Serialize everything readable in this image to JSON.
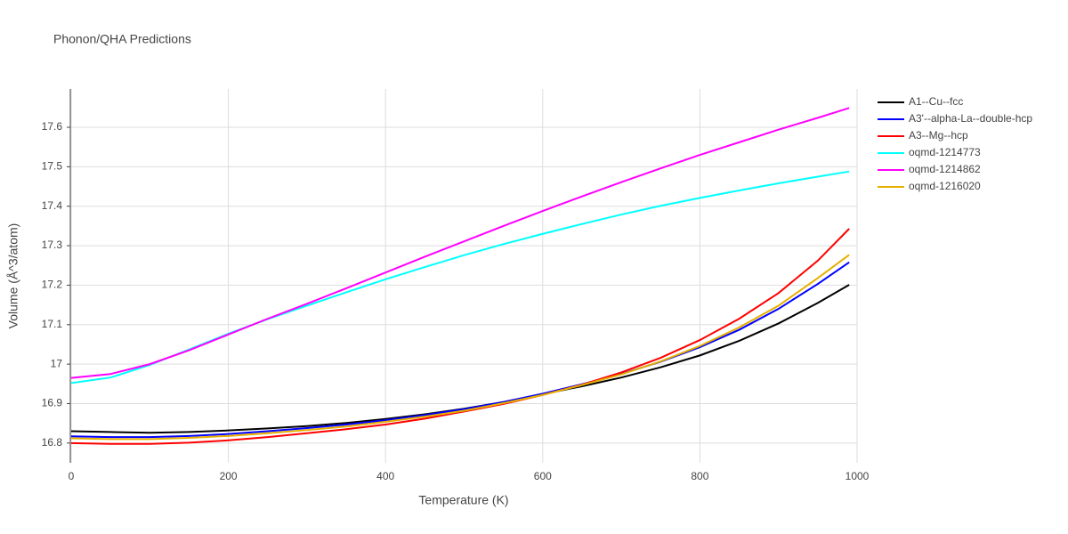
{
  "chart_data": {
    "type": "line",
    "title": "Phonon/QHA Predictions",
    "x_label": "Temperature (K)",
    "y_label": "Volume (Å^3/atom)",
    "x": [
      0,
      50,
      100,
      150,
      200,
      250,
      300,
      350,
      400,
      450,
      500,
      550,
      600,
      650,
      700,
      750,
      800,
      850,
      900,
      950,
      990
    ],
    "series": [
      {
        "name": "A1--Cu--fcc",
        "color": "#000000",
        "values": [
          16.83,
          16.828,
          16.826,
          16.828,
          16.832,
          16.837,
          16.843,
          16.851,
          16.861,
          16.873,
          16.887,
          16.904,
          16.924,
          16.944,
          16.966,
          16.992,
          17.022,
          17.059,
          17.103,
          17.155,
          17.201
        ]
      },
      {
        "name": "A3'--alpha-La--double-hcp",
        "color": "#0000ff",
        "values": [
          16.817,
          16.815,
          16.815,
          16.818,
          16.823,
          16.83,
          16.838,
          16.847,
          16.858,
          16.871,
          16.886,
          16.904,
          16.925,
          16.949,
          16.975,
          17.006,
          17.043,
          17.087,
          17.14,
          17.203,
          17.258
        ]
      },
      {
        "name": "A3--Mg--hcp",
        "color": "#ff0000",
        "values": [
          16.8,
          16.798,
          16.798,
          16.801,
          16.807,
          16.815,
          16.825,
          16.835,
          16.847,
          16.862,
          16.88,
          16.899,
          16.922,
          16.948,
          16.979,
          17.016,
          17.061,
          17.115,
          17.18,
          17.262,
          17.343
        ]
      },
      {
        "name": "oqmd-1214773",
        "color": "#00ffff",
        "values": [
          16.952,
          16.966,
          16.998,
          17.037,
          17.077,
          17.114,
          17.148,
          17.182,
          17.215,
          17.246,
          17.276,
          17.304,
          17.33,
          17.355,
          17.379,
          17.401,
          17.421,
          17.44,
          17.458,
          17.475,
          17.488
        ]
      },
      {
        "name": "oqmd-1214862",
        "color": "#ff00ff",
        "values": [
          16.965,
          16.975,
          17.0,
          17.035,
          17.075,
          17.115,
          17.153,
          17.192,
          17.232,
          17.272,
          17.311,
          17.35,
          17.388,
          17.425,
          17.461,
          17.496,
          17.53,
          17.562,
          17.594,
          17.624,
          17.649
        ]
      },
      {
        "name": "oqmd-1216020",
        "color": "#e6b000",
        "values": [
          16.812,
          16.81,
          16.81,
          16.813,
          16.818,
          16.825,
          16.833,
          16.842,
          16.854,
          16.867,
          16.882,
          16.901,
          16.922,
          16.947,
          16.974,
          17.007,
          17.046,
          17.093,
          17.148,
          17.218,
          17.277
        ]
      }
    ],
    "xlim": [
      0,
      1000
    ],
    "xticks": [
      0,
      200,
      400,
      600,
      800,
      1000
    ],
    "ylim": [
      16.75,
      17.697
    ],
    "yticks": [
      16.8,
      16.9,
      17,
      17.1,
      17.2,
      17.3,
      17.4,
      17.5,
      17.6
    ],
    "grid": true,
    "legend": "right"
  }
}
